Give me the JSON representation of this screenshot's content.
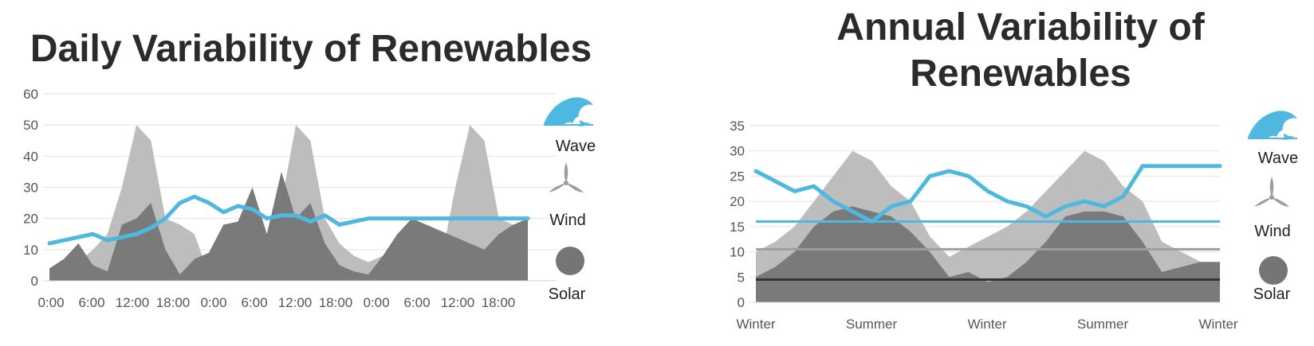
{
  "chart_data": [
    {
      "type": "area",
      "title": "Daily Variability of Renewables",
      "ylim": [
        0,
        60
      ],
      "y_ticks": [
        "0",
        "10",
        "20",
        "30",
        "40",
        "50",
        "60"
      ],
      "x_tick_labels": [
        "0:00",
        "6:00",
        "12:00",
        "18:00",
        "0:00",
        "6:00",
        "12:00",
        "18:00",
        "0:00",
        "6:00",
        "12:00",
        "18:00"
      ],
      "grid": true,
      "legend": "right",
      "x": [
        0,
        1,
        2,
        3,
        4,
        5,
        6,
        7,
        8,
        9,
        10,
        11,
        12,
        13,
        14,
        15,
        16,
        17,
        18,
        19,
        20,
        21,
        22,
        23,
        24,
        25,
        26,
        27,
        28,
        29,
        30,
        31,
        32,
        33
      ],
      "series": [
        {
          "name": "Wind",
          "color": "#bdbdbd",
          "values": [
            3,
            4,
            6,
            10,
            15,
            30,
            50,
            45,
            20,
            18,
            15,
            2,
            4,
            6,
            10,
            15,
            25,
            50,
            45,
            20,
            12,
            8,
            6,
            8,
            10,
            14,
            4,
            6,
            30,
            50,
            45,
            20,
            18,
            19
          ]
        },
        {
          "name": "Solar",
          "color": "#7a7a7a",
          "values": [
            4,
            7,
            12,
            5,
            3,
            18,
            20,
            25,
            10,
            2,
            7,
            9,
            18,
            19,
            30,
            15,
            35,
            20,
            25,
            12,
            5,
            3,
            2,
            8,
            15,
            20,
            18,
            16,
            14,
            12,
            10,
            15,
            18,
            20
          ]
        },
        {
          "name": "Wave",
          "color": "#4fb8e0",
          "values": [
            12,
            13,
            14,
            15,
            13,
            14,
            15,
            17,
            20,
            25,
            27,
            25,
            22,
            24,
            23,
            20,
            21,
            21,
            19,
            21,
            18,
            19,
            20,
            20,
            20,
            20,
            20,
            20,
            20,
            20,
            20,
            20,
            20,
            20
          ]
        }
      ],
      "legend_labels": [
        "Wave",
        "Wind",
        "Solar"
      ]
    },
    {
      "type": "area",
      "title": "Annual Variability of Renewables",
      "ylim": [
        0,
        35
      ],
      "y_ticks": [
        "0",
        "5",
        "10",
        "15",
        "20",
        "25",
        "30",
        "35"
      ],
      "x_tick_labels": [
        "Winter",
        "Summer",
        "Winter",
        "Summer",
        "Winter"
      ],
      "grid": true,
      "legend": "right",
      "x": [
        0,
        1,
        2,
        3,
        4,
        5,
        6,
        7,
        8,
        9,
        10,
        11,
        12,
        13,
        14,
        15,
        16,
        17,
        18,
        19,
        20,
        21,
        22,
        23,
        24
      ],
      "series": [
        {
          "name": "Wind",
          "color": "#bdbdbd",
          "values": [
            10,
            12,
            15,
            20,
            25,
            30,
            28,
            23,
            20,
            13,
            9,
            11,
            13,
            15,
            18,
            22,
            26,
            30,
            28,
            23,
            20,
            12,
            10,
            8,
            7
          ]
        },
        {
          "name": "Solar",
          "color": "#7a7a7a",
          "values": [
            5,
            7,
            10,
            15,
            18,
            19,
            18,
            17,
            14,
            10,
            5,
            6,
            4,
            5,
            8,
            12,
            17,
            18,
            18,
            17,
            12,
            6,
            7,
            8,
            8
          ]
        },
        {
          "name": "Wave",
          "color": "#4fb8e0",
          "values": [
            26,
            24,
            22,
            23,
            20,
            18,
            16,
            19,
            20,
            25,
            26,
            25,
            22,
            20,
            19,
            17,
            19,
            20,
            19,
            21,
            27,
            27,
            27,
            27,
            27
          ]
        }
      ],
      "reference_lines": [
        {
          "value": 16,
          "color": "#4fb8e0"
        },
        {
          "value": 10.5,
          "color": "#9e9e9e"
        },
        {
          "value": 4.5,
          "color": "#333333"
        }
      ],
      "legend_labels": [
        "Wave",
        "Wind",
        "Solar"
      ]
    }
  ]
}
